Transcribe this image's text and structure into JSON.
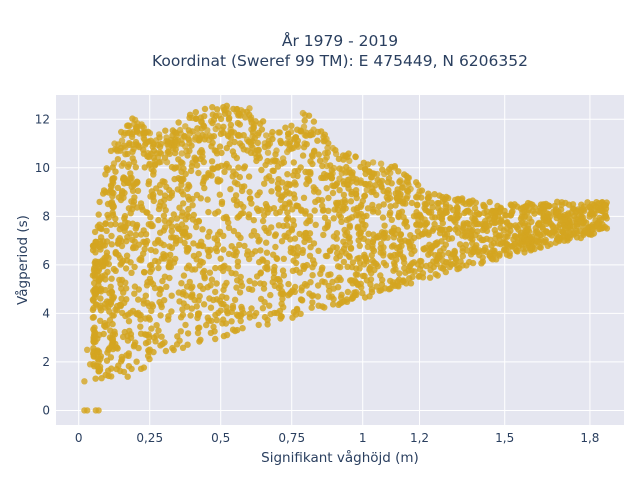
{
  "chart_data": {
    "type": "scatter",
    "title_line1": "År 1979 - 2019",
    "title_line2": "Koordinat (Sweref 99 TM): E 475449, N 6206352",
    "xlabel": "Signifikant våghöjd (m)",
    "ylabel": "Vågperiod (s)",
    "xlim": [
      -0.08,
      1.92
    ],
    "ylim": [
      -0.6,
      13.0
    ],
    "x_ticks": [
      0,
      0.25,
      0.5,
      0.75,
      1,
      1.2,
      1.5,
      1.8
    ],
    "x_tick_labels": [
      "0",
      "0,25",
      "0,5",
      "0,75",
      "1",
      "1,2",
      "1,5",
      "1,8"
    ],
    "y_ticks": [
      0,
      2,
      4,
      6,
      8,
      10,
      12
    ],
    "y_tick_labels": [
      "0",
      "2",
      "4",
      "6",
      "8",
      "10",
      "12"
    ],
    "grid": true,
    "marker_color": "#d4a520",
    "plot_bg": "#e5e6f0",
    "x_range": [
      0.0,
      1.86
    ],
    "y_range": [
      0.0,
      12.6
    ],
    "envelope": {
      "x": [
        0.05,
        0.1,
        0.15,
        0.2,
        0.25,
        0.3,
        0.4,
        0.5,
        0.6,
        0.7,
        0.8,
        0.9,
        1.0,
        1.1,
        1.2,
        1.3,
        1.4,
        1.5,
        1.6,
        1.7,
        1.8,
        1.86
      ],
      "y_min": [
        1.2,
        1.2,
        1.2,
        1.2,
        2.0,
        2.3,
        2.7,
        3.0,
        3.3,
        3.6,
        4.0,
        4.3,
        4.6,
        5.0,
        5.3,
        5.7,
        6.0,
        6.3,
        6.6,
        6.9,
        7.2,
        7.5
      ],
      "y_max": [
        7.0,
        10.5,
        11.5,
        12.3,
        11.5,
        11.5,
        12.3,
        12.6,
        12.5,
        11.5,
        12.4,
        11.0,
        10.3,
        10.2,
        9.3,
        8.8,
        8.7,
        8.5,
        8.6,
        8.6,
        8.6,
        8.6
      ]
    }
  }
}
